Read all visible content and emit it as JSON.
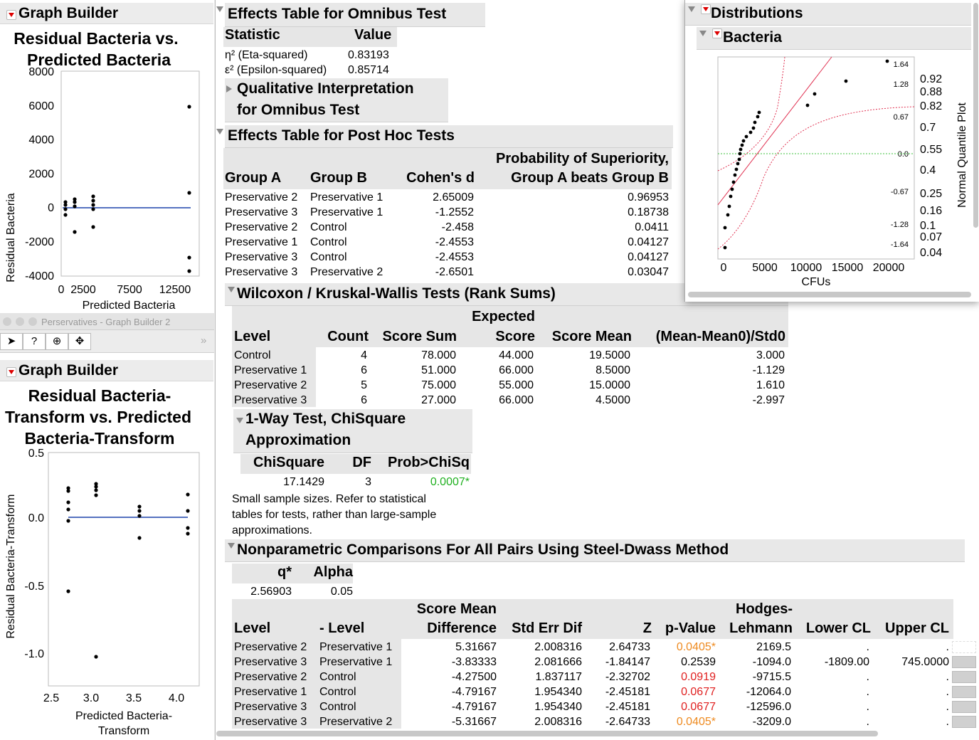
{
  "gb1": {
    "title": "Graph Builder",
    "chart_title_1": "Residual Bacteria vs.",
    "chart_title_2": "Predicted Bacteria",
    "ylabel": "Residual Bacteria",
    "xlabel": "Predicted Bacteria",
    "yticks": [
      "8000",
      "6000",
      "4000",
      "2000",
      "0",
      "-2000",
      "-4000"
    ],
    "xticks": [
      "0",
      "2500",
      "7500",
      "12500"
    ]
  },
  "win2": {
    "title": "Perservatives - Graph Builder 2",
    "tools": [
      "arrow",
      "?",
      "+",
      "move"
    ]
  },
  "gb2": {
    "title": "Graph Builder",
    "chart_title_1": "Residual Bacteria-",
    "chart_title_2": "Transform vs. Predicted",
    "chart_title_3": "Bacteria-Transform",
    "ylabel": "Residual Bacteria-Transform",
    "xlabel_1": "Predicted Bacteria-",
    "xlabel_2": "Transform",
    "yticks": [
      "0.5",
      "0.0",
      "-0.5",
      "-1.0"
    ],
    "xticks": [
      "2.5",
      "3.0",
      "3.5",
      "4.0"
    ]
  },
  "omnibus": {
    "title": "Effects Table for Omnibus Test",
    "col_stat": "Statistic",
    "col_value": "Value",
    "rows": [
      {
        "stat": "η² (Eta-squared)",
        "value": "0.83193"
      },
      {
        "stat": "ε² (Epsilon-squared)",
        "value": "0.85714"
      }
    ],
    "qual_1": "Qualitative Interpretation",
    "qual_2": "for Omnibus Test"
  },
  "posthoc": {
    "title": "Effects Table for Post Hoc Tests",
    "col_a": "Group A",
    "col_b": "Group B",
    "col_d": "Cohen's d",
    "col_p1": "Probability of Superiority,",
    "col_p2": "Group A beats Group B",
    "rows": [
      {
        "a": "Preservative 2",
        "b": "Preservative 1",
        "d": "2.65009",
        "p": "0.96953"
      },
      {
        "a": "Preservative 3",
        "b": "Preservative 1",
        "d": "-1.2552",
        "p": "0.18738"
      },
      {
        "a": "Preservative 2",
        "b": "Control",
        "d": "-2.458",
        "p": "0.0411"
      },
      {
        "a": "Preservative 1",
        "b": "Control",
        "d": "-2.4553",
        "p": "0.04127"
      },
      {
        "a": "Preservative 3",
        "b": "Control",
        "d": "-2.4553",
        "p": "0.04127"
      },
      {
        "a": "Preservative 3",
        "b": "Preservative 2",
        "d": "-2.6501",
        "p": "0.03047"
      }
    ]
  },
  "dist": {
    "title": "Distributions",
    "sub": "Bacteria",
    "xlabel": "CFUs",
    "xticks": [
      "0",
      "5000",
      "10000",
      "15000",
      "20000"
    ],
    "qticks": [
      "1.64",
      "1.28",
      "0.67",
      "0.0",
      "-0.67",
      "-1.28",
      "-1.64"
    ],
    "pticks": [
      "0.92",
      "0.88",
      "0.82",
      "0.7",
      "0.55",
      "0.4",
      "0.25",
      "0.16",
      "0.1",
      "0.07",
      "0.04"
    ],
    "rlabel": "Normal Quantile Plot"
  },
  "wilcoxon": {
    "title": "Wilcoxon / Kruskal-Wallis Tests (Rank Sums)",
    "cols": [
      "Level",
      "Count",
      "Score Sum",
      "Expected",
      "Score",
      "Score Mean",
      "(Mean-Mean0)/Std0"
    ],
    "rows": [
      {
        "level": "Control",
        "count": "4",
        "sum": "78.000",
        "exp": "44.000",
        "mean": "19.5000",
        "z": "3.000"
      },
      {
        "level": "Preservative 1",
        "count": "6",
        "sum": "51.000",
        "exp": "66.000",
        "mean": "8.5000",
        "z": "-1.129"
      },
      {
        "level": "Preservative 2",
        "count": "5",
        "sum": "75.000",
        "exp": "55.000",
        "mean": "15.0000",
        "z": "1.610"
      },
      {
        "level": "Preservative 3",
        "count": "6",
        "sum": "27.000",
        "exp": "66.000",
        "mean": "4.5000",
        "z": "-2.997"
      }
    ]
  },
  "chisq": {
    "title_1": "1-Way Test, ChiSquare",
    "title_2": "Approximation",
    "cols": [
      "ChiSquare",
      "DF",
      "Prob>ChiSq"
    ],
    "chisq": "17.1429",
    "df": "3",
    "prob": "0.0007*",
    "note_1": "Small sample sizes. Refer to statistical",
    "note_2": "tables for tests, rather than large-sample",
    "note_3": "approximations."
  },
  "steel": {
    "title": "Nonparametric Comparisons For All Pairs Using Steel-Dwass  Method",
    "q_label": "q*",
    "alpha_label": "Alpha",
    "q": "2.56903",
    "alpha": "0.05",
    "cols": [
      "Level",
      "- Level",
      "Score Mean",
      "Difference",
      "Std Err Dif",
      "Z",
      "p-Value",
      "Hodges-",
      "Lehmann",
      "Lower CL",
      "Upper CL"
    ],
    "rows": [
      {
        "l": "Preservative 2",
        "m": "Preservative 1",
        "diff": "5.31667",
        "se": "2.008316",
        "z": "2.64733",
        "p": "0.0405*",
        "pc": "orange",
        "hl": "2169.5",
        "lo": ".",
        "up": "."
      },
      {
        "l": "Preservative 3",
        "m": "Preservative 1",
        "diff": "-3.83333",
        "se": "2.081666",
        "z": "-1.84147",
        "p": "0.2539",
        "pc": "black",
        "hl": "-1094.0",
        "lo": "-1809.00",
        "up": "745.0000"
      },
      {
        "l": "Preservative 2",
        "m": "Control",
        "diff": "-4.27500",
        "se": "1.837117",
        "z": "-2.32702",
        "p": "0.0919",
        "pc": "red",
        "hl": "-9715.5",
        "lo": ".",
        "up": "."
      },
      {
        "l": "Preservative 1",
        "m": "Control",
        "diff": "-4.79167",
        "se": "1.954340",
        "z": "-2.45181",
        "p": "0.0677",
        "pc": "red",
        "hl": "-12064.0",
        "lo": ".",
        "up": "."
      },
      {
        "l": "Preservative 3",
        "m": "Control",
        "diff": "-4.79167",
        "se": "1.954340",
        "z": "-2.45181",
        "p": "0.0677",
        "pc": "red",
        "hl": "-12596.0",
        "lo": ".",
        "up": "."
      },
      {
        "l": "Preservative 3",
        "m": "Preservative 2",
        "diff": "-5.31667",
        "se": "2.008316",
        "z": "-2.64733",
        "p": "0.0405*",
        "pc": "orange",
        "hl": "-3209.0",
        "lo": ".",
        "up": "."
      }
    ]
  },
  "colors": {
    "orange": "#ee8a20",
    "red": "#e02020",
    "green": "#20b020",
    "fit": "#5572c0"
  }
}
